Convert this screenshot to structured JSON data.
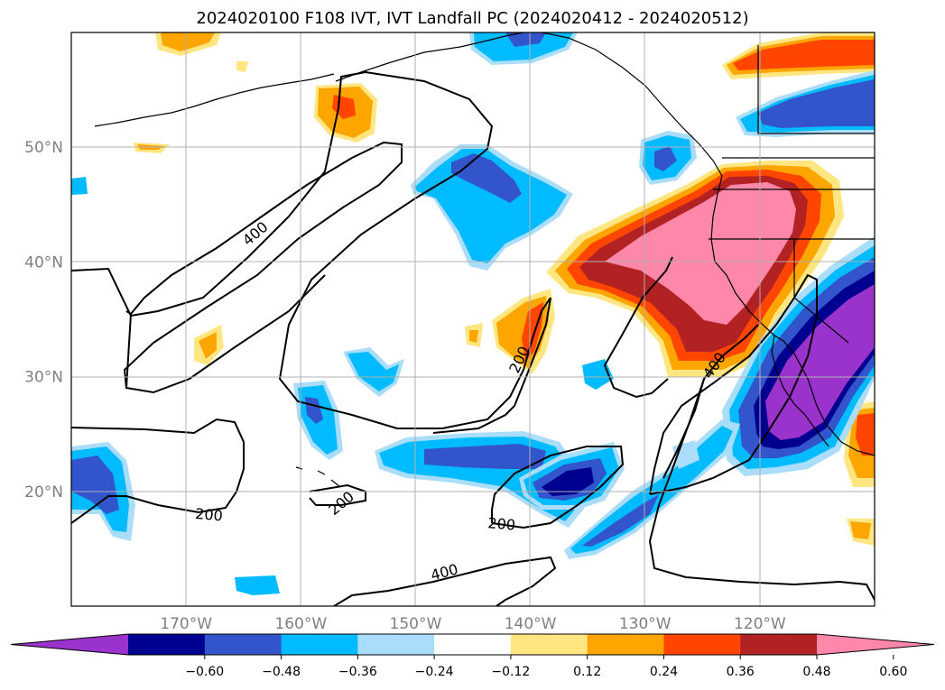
{
  "title": "2024020100 F108 IVT, IVT Landfall PC (2024020412 - 2024020512)",
  "map": {
    "extent": {
      "lon_min": -180,
      "lon_max": -110,
      "lat_min": 10,
      "lat_max": 60
    },
    "lat_labels": [
      {
        "lat": 50,
        "label": "50°N"
      },
      {
        "lat": 40,
        "label": "40°N"
      },
      {
        "lat": 30,
        "label": "30°N"
      },
      {
        "lat": 20,
        "label": "20°N"
      }
    ],
    "lon_labels": [
      {
        "lon": -170,
        "label": "170°W"
      },
      {
        "lon": -160,
        "label": "160°W"
      },
      {
        "lon": -150,
        "label": "150°W"
      },
      {
        "lon": -140,
        "label": "140°W"
      },
      {
        "lon": -130,
        "label": "130°W"
      },
      {
        "lon": -120,
        "label": "120°W"
      }
    ],
    "contour_labels": [
      {
        "text": "400",
        "lon": -164,
        "lat": 42.5,
        "rot": -40
      },
      {
        "text": "200",
        "lon": -141,
        "lat": 31.5,
        "rot": -65
      },
      {
        "text": "400",
        "lon": -124,
        "lat": 31,
        "rot": -55
      },
      {
        "text": "200",
        "lon": -168,
        "lat": 18,
        "rot": 5
      },
      {
        "text": "200",
        "lon": -156.5,
        "lat": 19,
        "rot": -40
      },
      {
        "text": "200",
        "lon": -142.5,
        "lat": 17.2,
        "rot": 5
      },
      {
        "text": "400",
        "lon": -147.5,
        "lat": 13,
        "rot": -15
      }
    ]
  },
  "colorbar": {
    "ticks": [
      "−0.60",
      "−0.48",
      "−0.36",
      "−0.24",
      "−0.12",
      "0.12",
      "0.24",
      "0.36",
      "0.48",
      "0.60"
    ],
    "colors": [
      "#9933cc",
      "#000090",
      "#3355cc",
      "#00bbff",
      "#aaddfa",
      "#ffffff",
      "#ffe680",
      "#ffa500",
      "#ff4500",
      "#b22222",
      "#ff88aa"
    ]
  }
}
